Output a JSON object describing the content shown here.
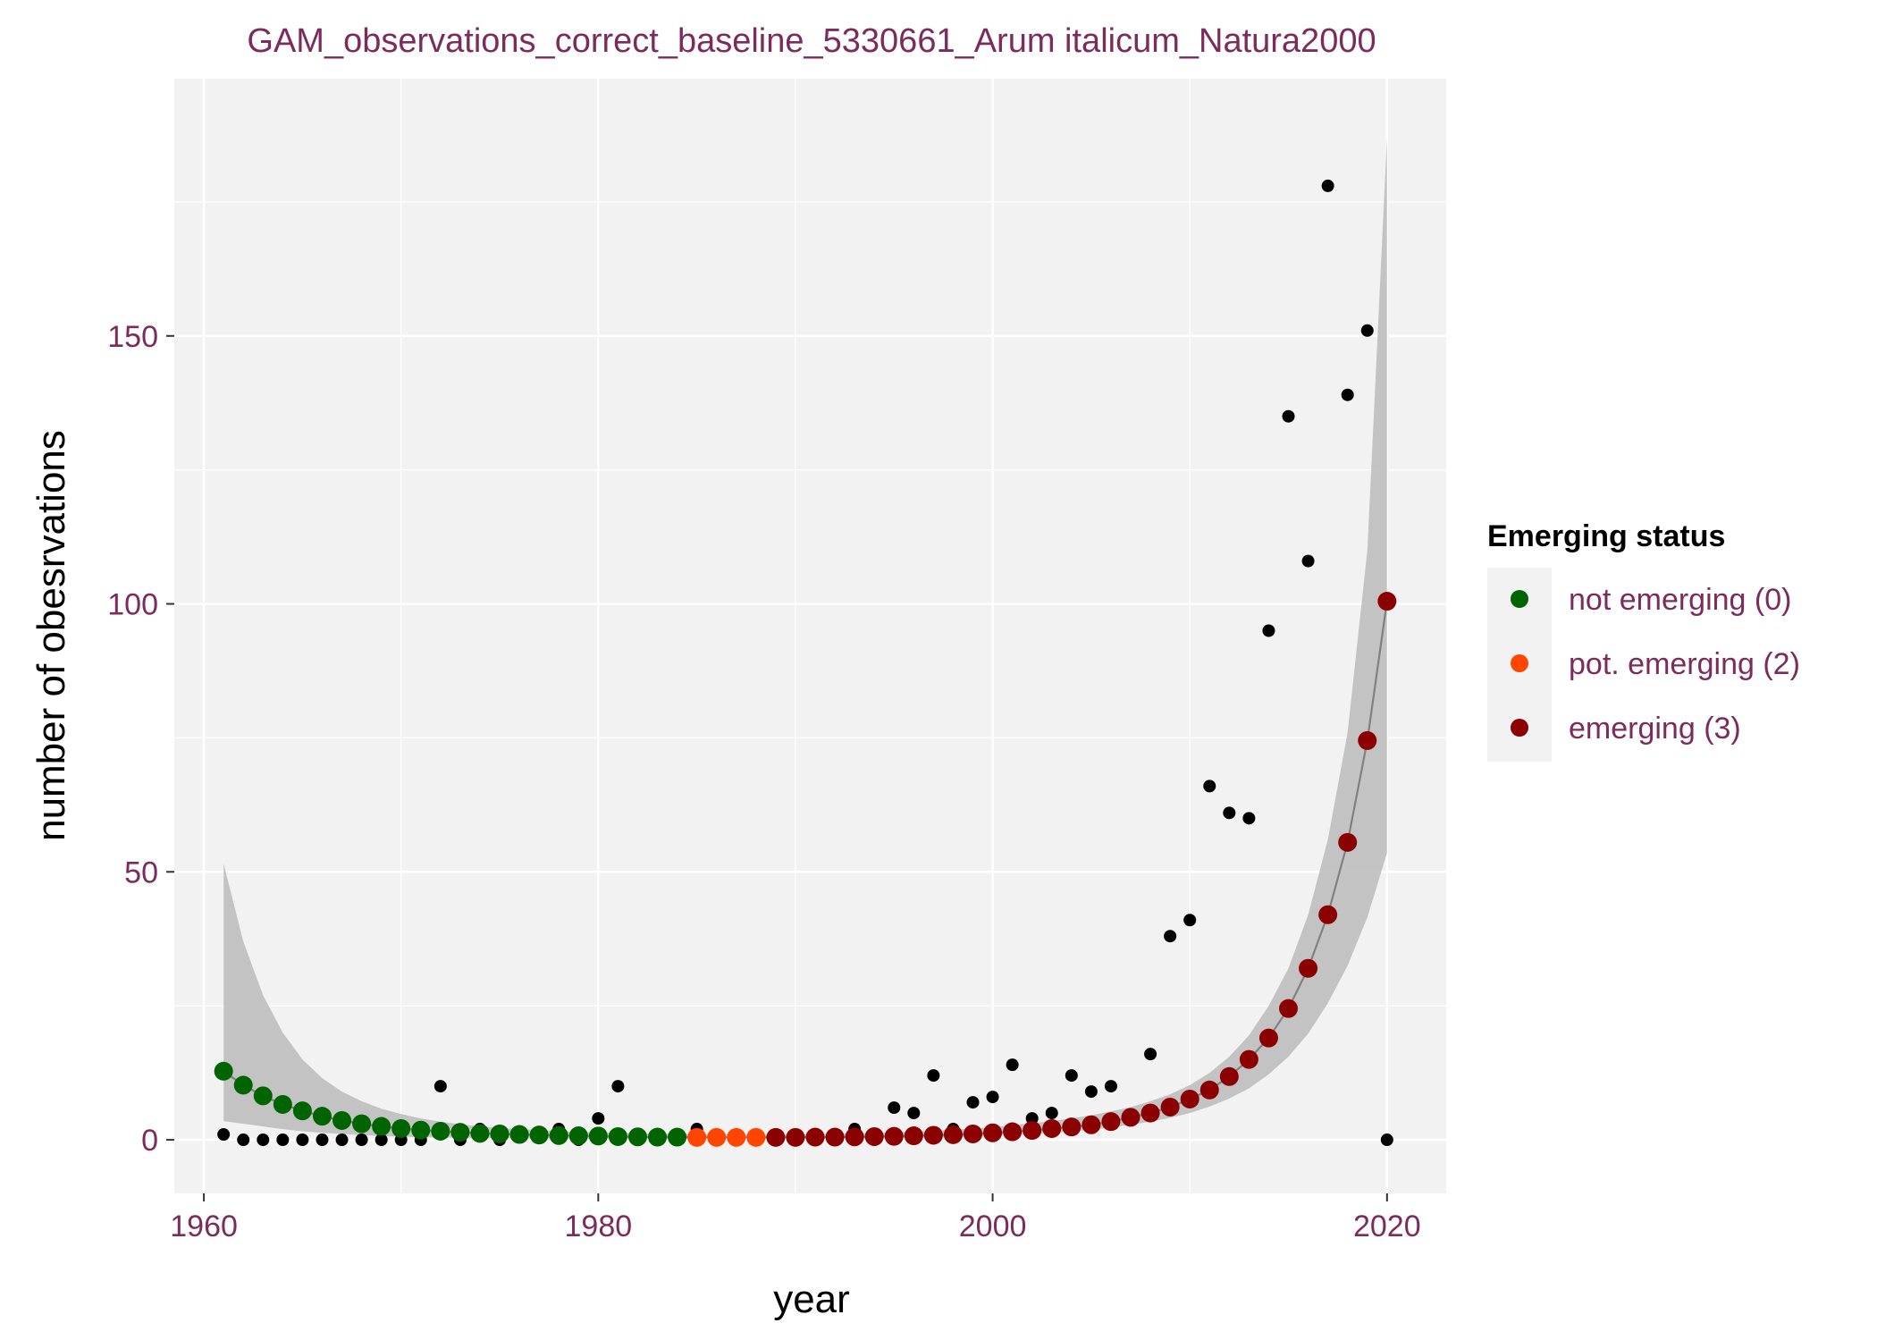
{
  "chart_data": {
    "type": "scatter",
    "title": "GAM_observations_correct_baseline_5330661_Arum italicum_Natura2000",
    "xlabel": "year",
    "ylabel": "number of obesrvations",
    "xlim": [
      1958.5,
      2023
    ],
    "ylim": [
      -10,
      198
    ],
    "x_ticks": [
      1960,
      1980,
      2000,
      2020
    ],
    "y_ticks": [
      0,
      50,
      100,
      150
    ],
    "grid": true,
    "legend": {
      "title": "Emerging status",
      "position": "right",
      "items": [
        {
          "label": "not emerging (0)",
          "color": "#006400"
        },
        {
          "label": "pot. emerging (2)",
          "color": "#ff4500"
        },
        {
          "label": "emerging (3)",
          "color": "#8b0000"
        }
      ]
    },
    "colors": {
      "panel": "#f2f2f2",
      "grid": "#ffffff",
      "band": "#bebebe",
      "fit_line": "#808080",
      "observed": "#000000",
      "text": "#7b2c5c"
    },
    "observed": {
      "x": [
        1961,
        1962,
        1963,
        1964,
        1965,
        1966,
        1967,
        1968,
        1969,
        1970,
        1971,
        1972,
        1973,
        1974,
        1975,
        1976,
        1977,
        1978,
        1979,
        1980,
        1981,
        1982,
        1983,
        1984,
        1985,
        1986,
        1987,
        1988,
        1989,
        1990,
        1991,
        1992,
        1993,
        1994,
        1995,
        1996,
        1997,
        1998,
        1999,
        2000,
        2001,
        2002,
        2003,
        2004,
        2005,
        2006,
        2007,
        2008,
        2009,
        2010,
        2011,
        2012,
        2013,
        2014,
        2015,
        2016,
        2017,
        2018,
        2019,
        2020
      ],
      "y": [
        1,
        0,
        0,
        0,
        0,
        0,
        0,
        0,
        0,
        0,
        0,
        10,
        0,
        2,
        0,
        1,
        1,
        2,
        0,
        4,
        10,
        0,
        0,
        0,
        2,
        0,
        0,
        0,
        0,
        0,
        0,
        0,
        2,
        0,
        6,
        5,
        12,
        2,
        7,
        8,
        14,
        4,
        5,
        12,
        9,
        10,
        4,
        16,
        38,
        41,
        66,
        61,
        60,
        95,
        135,
        108,
        178,
        139,
        151,
        0
      ]
    },
    "fitted": {
      "x": [
        1961,
        1962,
        1963,
        1964,
        1965,
        1966,
        1967,
        1968,
        1969,
        1970,
        1971,
        1972,
        1973,
        1974,
        1975,
        1976,
        1977,
        1978,
        1979,
        1980,
        1981,
        1982,
        1983,
        1984,
        1985,
        1986,
        1987,
        1988,
        1989,
        1990,
        1991,
        1992,
        1993,
        1994,
        1995,
        1996,
        1997,
        1998,
        1999,
        2000,
        2001,
        2002,
        2003,
        2004,
        2005,
        2006,
        2007,
        2008,
        2009,
        2010,
        2011,
        2012,
        2013,
        2014,
        2015,
        2016,
        2017,
        2018,
        2019,
        2020
      ],
      "y": [
        12.8,
        10.2,
        8.2,
        6.6,
        5.4,
        4.4,
        3.6,
        3.0,
        2.5,
        2.1,
        1.8,
        1.6,
        1.4,
        1.2,
        1.1,
        1.0,
        0.9,
        0.8,
        0.75,
        0.7,
        0.6,
        0.55,
        0.5,
        0.5,
        0.45,
        0.45,
        0.45,
        0.45,
        0.45,
        0.45,
        0.5,
        0.5,
        0.55,
        0.6,
        0.65,
        0.75,
        0.85,
        0.95,
        1.1,
        1.3,
        1.5,
        1.75,
        2.1,
        2.4,
        2.8,
        3.4,
        4.2,
        5.0,
        6.1,
        7.6,
        9.3,
        11.8,
        15.0,
        19.0,
        24.5,
        32.0,
        42.0,
        55.5,
        74.5,
        100.5
      ],
      "status": [
        0,
        0,
        0,
        0,
        0,
        0,
        0,
        0,
        0,
        0,
        0,
        0,
        0,
        0,
        0,
        0,
        0,
        0,
        0,
        0,
        0,
        0,
        0,
        0,
        2,
        2,
        2,
        2,
        3,
        3,
        3,
        3,
        3,
        3,
        3,
        3,
        3,
        3,
        3,
        3,
        3,
        3,
        3,
        3,
        3,
        3,
        3,
        3,
        3,
        3,
        3,
        3,
        3,
        3,
        3,
        3,
        3,
        3,
        3,
        3
      ],
      "lower": [
        3.5,
        3.0,
        2.5,
        2.0,
        1.6,
        1.3,
        1.1,
        0.9,
        0.7,
        0.6,
        0.5,
        0.45,
        0.4,
        0.35,
        0.3,
        0.3,
        0.25,
        0.25,
        0.2,
        0.2,
        0.2,
        0.2,
        0.2,
        0.2,
        0.2,
        0.2,
        0.2,
        0.2,
        0.2,
        0.2,
        0.2,
        0.25,
        0.25,
        0.3,
        0.35,
        0.4,
        0.45,
        0.55,
        0.65,
        0.8,
        0.95,
        1.1,
        1.35,
        1.6,
        1.9,
        2.3,
        2.8,
        3.4,
        4.1,
        5.0,
        6.2,
        7.7,
        9.6,
        12.2,
        15.5,
        19.8,
        25.5,
        32.5,
        41.5,
        53.5
      ],
      "upper": [
        51.5,
        37.0,
        27.0,
        20.0,
        15.0,
        11.5,
        9.0,
        7.2,
        5.8,
        4.8,
        4.0,
        3.4,
        2.9,
        2.5,
        2.2,
        2.0,
        1.8,
        1.6,
        1.5,
        1.4,
        1.3,
        1.2,
        1.15,
        1.1,
        1.05,
        1.0,
        1.0,
        1.0,
        1.0,
        1.0,
        1.05,
        1.1,
        1.2,
        1.3,
        1.4,
        1.55,
        1.7,
        1.9,
        2.1,
        2.4,
        2.7,
        3.1,
        3.5,
        4.0,
        4.6,
        5.3,
        6.1,
        7.2,
        8.5,
        10.2,
        12.5,
        15.5,
        19.5,
        25.0,
        32.0,
        42.0,
        56.0,
        76.0,
        110.0,
        187.0
      ]
    }
  }
}
